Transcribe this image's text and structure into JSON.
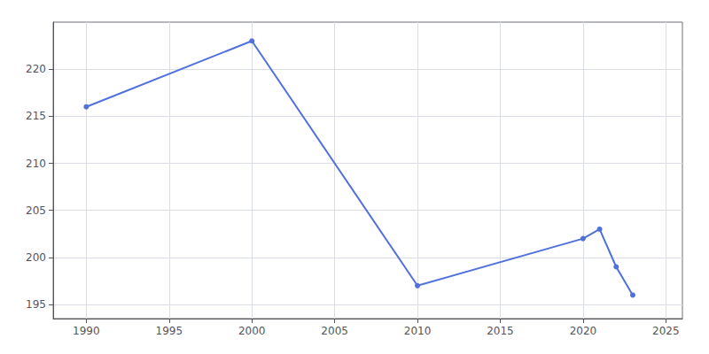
{
  "chart_data": {
    "type": "line",
    "x": [
      1990,
      2000,
      2010,
      2020,
      2021,
      2022,
      2023
    ],
    "values": [
      216,
      223,
      197,
      202,
      203,
      199,
      196
    ],
    "xlim": [
      1988,
      2026
    ],
    "ylim": [
      193.5,
      225
    ],
    "xticks": [
      1990,
      1995,
      2000,
      2005,
      2010,
      2015,
      2020,
      2025
    ],
    "yticks": [
      195,
      200,
      205,
      210,
      215,
      220
    ],
    "grid": true,
    "marker": "circle"
  }
}
